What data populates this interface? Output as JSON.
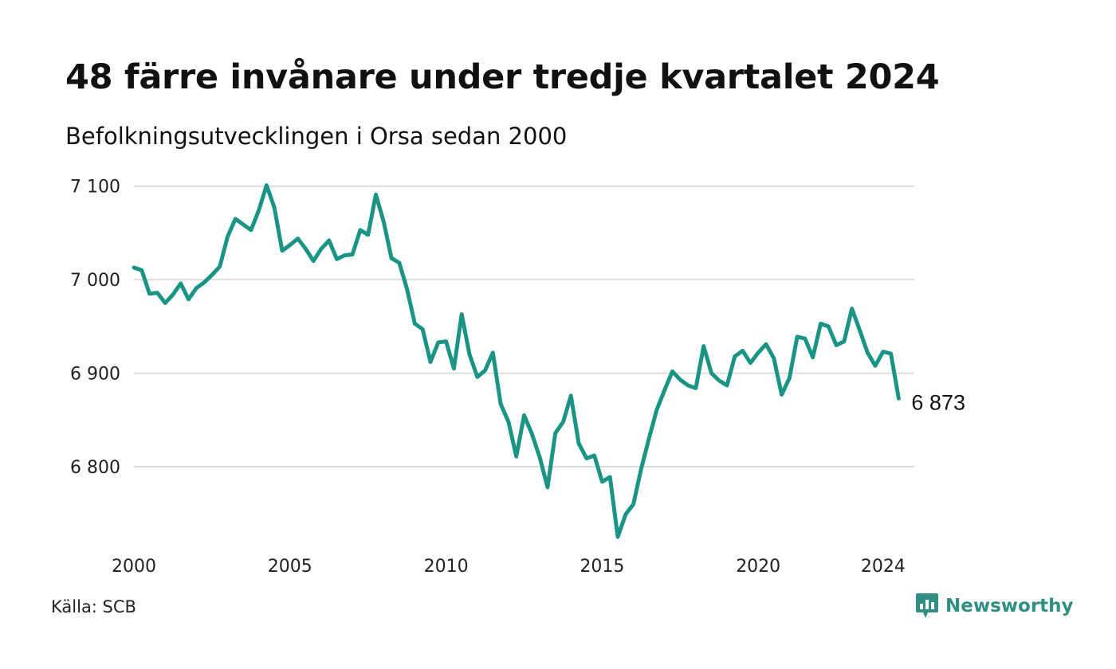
{
  "title": "48 färre invånare under tredje kvartalet 2024",
  "subtitle": "Befolkningsutvecklingen i Orsa sedan 2000",
  "source": "Källa: SCB",
  "brand": {
    "name": "Newsworthy",
    "icon": "newsworthy-logo-icon",
    "color": "#2f8f83"
  },
  "chart_data": {
    "type": "line",
    "title": "48 färre invånare under tredje kvartalet 2024",
    "subtitle": "Befolkningsutvecklingen i Orsa sedan 2000",
    "xlabel": "",
    "ylabel": "",
    "line_color": "#1a9484",
    "grid": true,
    "ylim": [
      6720,
      7110
    ],
    "xlim": [
      2000,
      2025
    ],
    "y_ticks": [
      6800,
      6900,
      7000,
      7100
    ],
    "y_tick_labels": [
      "6 800",
      "6 900",
      "7 000",
      "7 100"
    ],
    "x_ticks": [
      2000,
      2005,
      2010,
      2015,
      2020,
      2024
    ],
    "x_tick_labels": [
      "2000",
      "2005",
      "2010",
      "2015",
      "2020",
      "2024"
    ],
    "end_label": "6 873",
    "series": [
      {
        "x": [
          2000.0,
          2000.25,
          2000.5,
          2000.75,
          2001.0,
          2001.25,
          2001.5,
          2001.75,
          2002.0,
          2002.25,
          2002.5,
          2002.75,
          2003.0,
          2003.25,
          2003.5,
          2003.75,
          2004.0,
          2004.25,
          2004.5,
          2004.75,
          2005.0,
          2005.25,
          2005.5,
          2005.75,
          2006.0,
          2006.25,
          2006.5,
          2006.75,
          2007.0,
          2007.25,
          2007.5,
          2007.75,
          2008.0,
          2008.25,
          2008.5,
          2008.75,
          2009.0,
          2009.25,
          2009.5,
          2009.75,
          2010.0,
          2010.25,
          2010.5,
          2010.75,
          2011.0,
          2011.25,
          2011.5,
          2011.75,
          2012.0,
          2012.25,
          2012.5,
          2012.75,
          2013.0,
          2013.25,
          2013.5,
          2013.75,
          2014.0,
          2014.25,
          2014.5,
          2014.75,
          2015.0,
          2015.25,
          2015.5,
          2015.75,
          2016.0,
          2016.25,
          2016.5,
          2016.75,
          2017.0,
          2017.25,
          2017.5,
          2017.75,
          2018.0,
          2018.25,
          2018.5,
          2018.75,
          2019.0,
          2019.25,
          2019.5,
          2019.75,
          2020.0,
          2020.25,
          2020.5,
          2020.75,
          2021.0,
          2021.25,
          2021.5,
          2021.75,
          2022.0,
          2022.25,
          2022.5,
          2022.75,
          2023.0,
          2023.25,
          2023.5,
          2023.75,
          2024.0,
          2024.25,
          2024.5
        ],
        "y": [
          7013,
          7010,
          6985,
          6986,
          6975,
          6984,
          6996,
          6979,
          6991,
          6997,
          7005,
          7014,
          7046,
          7065,
          7059,
          7053,
          7074,
          7101,
          7077,
          7031,
          7037,
          7044,
          7033,
          7020,
          7033,
          7042,
          7022,
          7026,
          7027,
          7053,
          7048,
          7091,
          7062,
          7023,
          7018,
          6990,
          6953,
          6947,
          6912,
          6933,
          6934,
          6905,
          6963,
          6920,
          6896,
          6903,
          6922,
          6867,
          6848,
          6811,
          6855,
          6835,
          6810,
          6778,
          6836,
          6848,
          6876,
          6825,
          6809,
          6812,
          6784,
          6789,
          6725,
          6749,
          6760,
          6798,
          6830,
          6861,
          6882,
          6902,
          6893,
          6887,
          6884,
          6929,
          6900,
          6892,
          6887,
          6918,
          6924,
          6911,
          6922,
          6931,
          6916,
          6877,
          6895,
          6939,
          6937,
          6917,
          6953,
          6950,
          6930,
          6934,
          6969,
          6946,
          6922,
          6908,
          6923,
          6921,
          6873
        ]
      }
    ]
  }
}
